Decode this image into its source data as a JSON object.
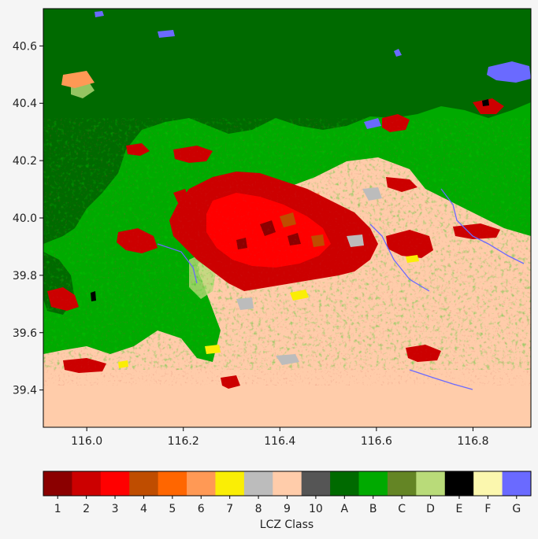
{
  "map": {
    "x_axis": {
      "range": [
        115.91,
        116.92
      ],
      "ticks": [
        {
          "value": 116.0,
          "label": "116.0"
        },
        {
          "value": 116.2,
          "label": "116.2"
        },
        {
          "value": 116.4,
          "label": "116.4"
        },
        {
          "value": 116.6,
          "label": "116.6"
        },
        {
          "value": 116.8,
          "label": "116.8"
        }
      ]
    },
    "y_axis": {
      "range": [
        39.27,
        40.73
      ],
      "ticks": [
        {
          "value": 39.4,
          "label": "39.4"
        },
        {
          "value": 39.6,
          "label": "39.6"
        },
        {
          "value": 39.8,
          "label": "39.8"
        },
        {
          "value": 40.0,
          "label": "40.0"
        },
        {
          "value": 40.2,
          "label": "40.2"
        },
        {
          "value": 40.4,
          "label": "40.4"
        },
        {
          "value": 40.6,
          "label": "40.6"
        }
      ]
    }
  },
  "colorbar": {
    "title": "LCZ Class",
    "classes": [
      {
        "label": "1",
        "color": "#8b0000"
      },
      {
        "label": "2",
        "color": "#cc0000"
      },
      {
        "label": "3",
        "color": "#ff0000"
      },
      {
        "label": "4",
        "color": "#bf4d00"
      },
      {
        "label": "5",
        "color": "#ff6600"
      },
      {
        "label": "6",
        "color": "#ff9955"
      },
      {
        "label": "7",
        "color": "#faee05"
      },
      {
        "label": "8",
        "color": "#bcbcbc"
      },
      {
        "label": "9",
        "color": "#ffccaa"
      },
      {
        "label": "10",
        "color": "#555555"
      },
      {
        "label": "A",
        "color": "#006a00"
      },
      {
        "label": "B",
        "color": "#00aa00"
      },
      {
        "label": "C",
        "color": "#648525"
      },
      {
        "label": "D",
        "color": "#b9db79"
      },
      {
        "label": "E",
        "color": "#000000"
      },
      {
        "label": "F",
        "color": "#fbf7ae"
      },
      {
        "label": "G",
        "color": "#6a6aff"
      }
    ]
  }
}
